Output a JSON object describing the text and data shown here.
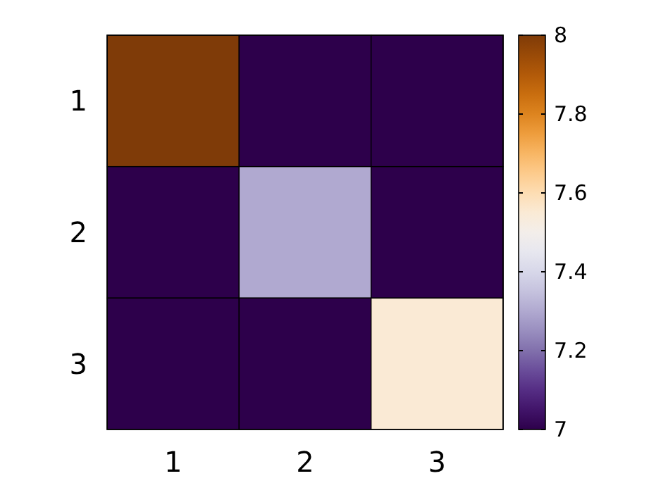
{
  "chart_data": {
    "type": "heatmap",
    "categories": [
      "1",
      "2",
      "3"
    ],
    "y_categories": [
      "1",
      "2",
      "3"
    ],
    "cells": [
      [
        8,
        7,
        7
      ],
      [
        7,
        7.3,
        7
      ],
      [
        7,
        7,
        7.55
      ]
    ],
    "clim": [
      7,
      8
    ],
    "cticks": [
      7,
      7.2,
      7.4,
      7.6,
      7.8,
      8
    ]
  }
}
